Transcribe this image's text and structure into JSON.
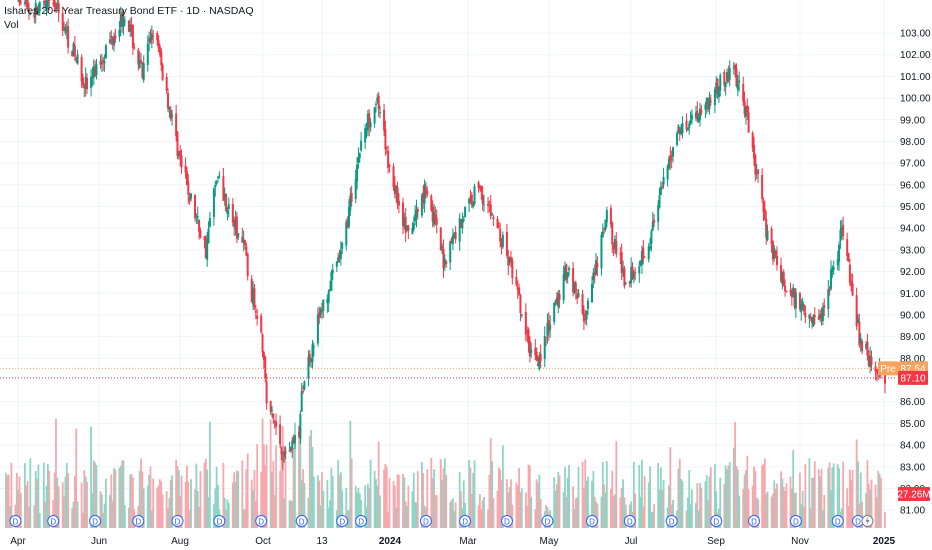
{
  "legend": {
    "symbol_title": "Ishares 20+ Year Treasury Bond ETF · 1D · NASDAQ",
    "vol_label": "Vol"
  },
  "price_tags": {
    "pre": {
      "label": "Pre",
      "value": "87.54",
      "color": "#f7a35c"
    },
    "last": {
      "value": "87.10",
      "color": "#f23645"
    },
    "volume": {
      "value": "27.26M",
      "color": "#f23645"
    }
  },
  "colors": {
    "up": "#089981",
    "down": "#f23645",
    "vol_up": "#8fd4c4",
    "vol_down": "#f6a9ad",
    "grid": "#f0f3fa",
    "axis_text": "#131722",
    "dividend_marker": "#2962ff"
  },
  "chart_data": {
    "type": "candlestick",
    "title": "Ishares 20+ Year Treasury Bond ETF · 1D · NASDAQ",
    "y_axis_ticks": [
      81.0,
      82.0,
      83.0,
      84.0,
      85.0,
      86.0,
      87.0,
      88.0,
      89.0,
      90.0,
      91.0,
      92.0,
      93.0,
      94.0,
      95.0,
      96.0,
      97.0,
      98.0,
      99.0,
      100.0,
      101.0,
      102.0,
      103.0
    ],
    "ylim": [
      80.5,
      103.6
    ],
    "x_axis_ticks": [
      "Apr",
      "Jun",
      "Aug",
      "Oct",
      "13",
      "2024",
      "Mar",
      "May",
      "Jul",
      "Sep",
      "Nov",
      "2025"
    ],
    "x_range": [
      "2023-03-27",
      "2025-01-06"
    ],
    "dividend_label": "D",
    "dividend_dates": [
      "2023-04-03",
      "2023-05-01",
      "2023-06-01",
      "2023-07-03",
      "2023-08-01",
      "2023-09-01",
      "2023-10-02",
      "2023-11-01",
      "2023-12-01",
      "2023-12-15",
      "2024-02-01",
      "2024-03-01",
      "2024-04-01",
      "2024-05-01",
      "2024-06-03",
      "2024-07-01",
      "2024-08-01",
      "2024-09-03",
      "2024-10-01",
      "2024-11-01",
      "2024-12-02",
      "2024-12-17"
    ],
    "split_marker_date": "2024-12-24",
    "price_path": [
      [
        "2023-03-27",
        105.8
      ],
      [
        "2023-04-14",
        104.0
      ],
      [
        "2023-05-03",
        104.2
      ],
      [
        "2023-05-26",
        100.5
      ],
      [
        "2023-06-07",
        102.0
      ],
      [
        "2023-06-23",
        104.0
      ],
      [
        "2023-07-06",
        101.0
      ],
      [
        "2023-07-14",
        103.3
      ],
      [
        "2023-07-27",
        99.3
      ],
      [
        "2023-08-04",
        96.8
      ],
      [
        "2023-08-10",
        95.5
      ],
      [
        "2023-08-22",
        93.0
      ],
      [
        "2023-08-30",
        96.5
      ],
      [
        "2023-09-14",
        93.8
      ],
      [
        "2023-09-21",
        92.9
      ],
      [
        "2023-09-22",
        91.5
      ],
      [
        "2023-10-02",
        89.6
      ],
      [
        "2023-10-06",
        86.0
      ],
      [
        "2023-10-12",
        85.0
      ],
      [
        "2023-10-19",
        83.5
      ],
      [
        "2023-10-30",
        84.6
      ],
      [
        "2023-11-02",
        86.8
      ],
      [
        "2023-11-13",
        89.7
      ],
      [
        "2023-12-01",
        93.0
      ],
      [
        "2023-12-15",
        98.0
      ],
      [
        "2023-12-26",
        100.0
      ],
      [
        "2024-01-05",
        96.8
      ],
      [
        "2024-01-19",
        93.5
      ],
      [
        "2024-02-01",
        96.0
      ],
      [
        "2024-02-14",
        92.5
      ],
      [
        "2024-02-28",
        94.5
      ],
      [
        "2024-03-11",
        96.0
      ],
      [
        "2024-03-25",
        94.0
      ],
      [
        "2024-04-05",
        92.0
      ],
      [
        "2024-04-17",
        88.5
      ],
      [
        "2024-04-25",
        88.0
      ],
      [
        "2024-05-16",
        92.2
      ],
      [
        "2024-05-29",
        89.8
      ],
      [
        "2024-06-14",
        94.5
      ],
      [
        "2024-06-28",
        91.5
      ],
      [
        "2024-07-16",
        93.5
      ],
      [
        "2024-08-05",
        98.5
      ],
      [
        "2024-08-23",
        99.5
      ],
      [
        "2024-09-16",
        101.4
      ],
      [
        "2024-09-25",
        99.3
      ],
      [
        "2024-10-10",
        94.0
      ],
      [
        "2024-10-24",
        91.2
      ],
      [
        "2024-11-05",
        90.5
      ],
      [
        "2024-11-18",
        89.6
      ],
      [
        "2024-12-06",
        94.0
      ],
      [
        "2024-12-18",
        89.0
      ],
      [
        "2024-12-31",
        87.3
      ],
      [
        "2025-01-06",
        87.1
      ]
    ]
  }
}
